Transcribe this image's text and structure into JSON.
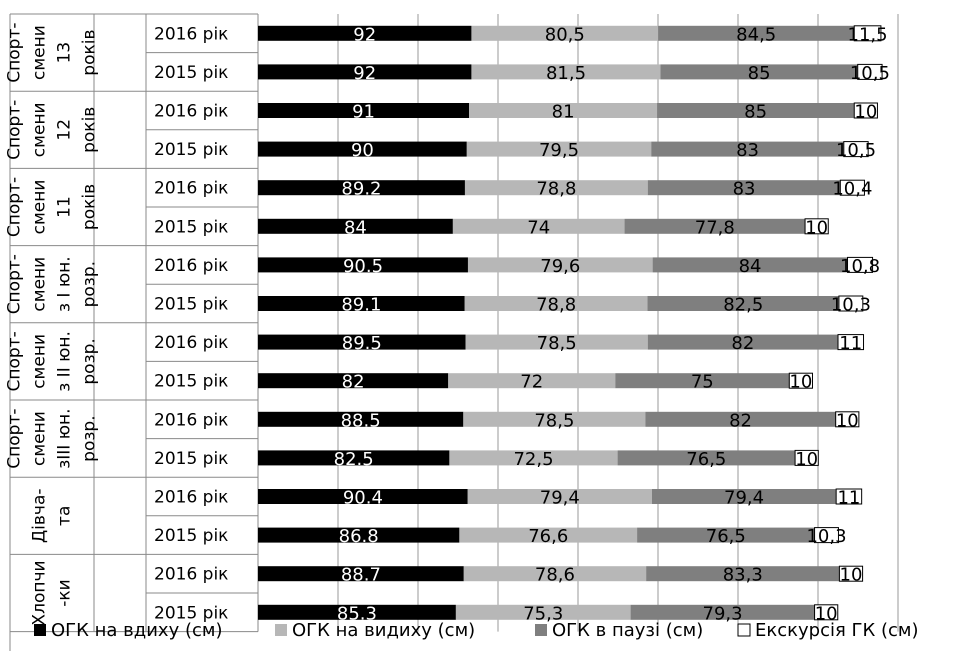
{
  "chart_data": {
    "type": "bar",
    "orientation": "horizontal",
    "stacked": true,
    "grid": true,
    "legend_position": "bottom",
    "groups": [
      {
        "lines": [
          "Спорт-",
          "смени",
          "13",
          "років"
        ]
      },
      {
        "lines": [
          "Спорт-",
          "смени",
          "12",
          "років"
        ]
      },
      {
        "lines": [
          "Спорт-",
          "смени",
          "11",
          "років"
        ]
      },
      {
        "lines": [
          "Спорт-",
          "смени",
          "з І юн.",
          "розр."
        ]
      },
      {
        "lines": [
          "Спорт-",
          "смени",
          "з ІІ юн.",
          "розр."
        ]
      },
      {
        "lines": [
          "Спорт-",
          "смени",
          "зІІІ юн.",
          "розр."
        ]
      },
      {
        "lines": [
          "Дівча-",
          "та"
        ]
      },
      {
        "lines": [
          "Хлопчи",
          "-ки"
        ]
      }
    ],
    "categories": [
      "2016 рік",
      "2015 рік",
      "2016 рік",
      "2015 рік",
      "2016 рік",
      "2015 рік",
      "2016 рік",
      "2015 рік",
      "2016 рік",
      "2015 рік",
      "2016 рік",
      "2015 рік",
      "2016 рік",
      "2015 рік",
      "2016 рік",
      "2015 рік"
    ],
    "series": [
      {
        "name": "ОГК на вдиху (см)",
        "color": "#000000",
        "text_color": "#ffffff",
        "values": [
          92,
          92,
          91,
          90,
          89.2,
          84,
          90.5,
          89.1,
          89.5,
          82,
          88.5,
          82.5,
          90.4,
          86.8,
          88.7,
          85.3
        ],
        "labels": [
          "92",
          "92",
          "91",
          "90",
          "89.2",
          "84",
          "90.5",
          "89.1",
          "89.5",
          "82",
          "88.5",
          "82.5",
          "90.4",
          "86.8",
          "88.7",
          "85.3"
        ]
      },
      {
        "name": "ОГК на видиху (см)",
        "color": "#b7b7b7",
        "text_color": "#000000",
        "values": [
          80.5,
          81.5,
          81,
          79.5,
          78.8,
          74,
          79.6,
          78.8,
          78.5,
          72,
          78.5,
          72.5,
          79.4,
          76.6,
          78.6,
          75.3
        ],
        "labels": [
          "80,5",
          "81,5",
          "81",
          "79,5",
          "78,8",
          "74",
          "79,6",
          "78,8",
          "78,5",
          "72",
          "78,5",
          "72,5",
          "79,4",
          "76,6",
          "78,6",
          "75,3"
        ]
      },
      {
        "name": "ОГК в паузі (см)",
        "color": "#7f7f7f",
        "text_color": "#000000",
        "values": [
          84.5,
          85,
          85,
          83,
          83,
          77.8,
          84,
          82.5,
          82,
          75,
          82,
          76.5,
          79.4,
          76.5,
          83.3,
          79.3
        ],
        "labels": [
          "84,5",
          "85",
          "85",
          "83",
          "83",
          "77,8",
          "84",
          "82,5",
          "82",
          "75",
          "82",
          "76,5",
          "79,4",
          "76,5",
          "83,3",
          "79,3"
        ]
      },
      {
        "name": "Екскурсія ГК (см)",
        "color": "#ffffff",
        "text_color": "#000000",
        "values": [
          11.5,
          10.5,
          10,
          10.5,
          10.4,
          10,
          10.8,
          10.3,
          11,
          10,
          10,
          10,
          11,
          10.3,
          10,
          10
        ],
        "labels": [
          "11,5",
          "10,5",
          "10",
          "10,5",
          "10,4",
          "10",
          "10,8",
          "10,3",
          "11",
          "10",
          "10",
          "10",
          "11",
          "10,3",
          "10",
          "10"
        ]
      }
    ]
  }
}
